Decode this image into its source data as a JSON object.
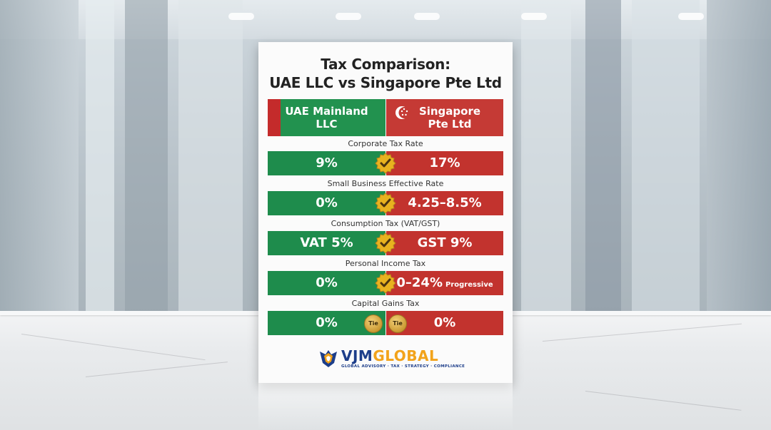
{
  "title": {
    "line1": "Tax Comparison:",
    "line2": "UAE LLC vs Singapore Pte Ltd"
  },
  "columns": {
    "uae": "UAE Mainland\nLLC",
    "uae_line1": "UAE Mainland",
    "uae_line2": "LLC",
    "sg_line1": "Singapore",
    "sg_line2": "Pte Ltd"
  },
  "rows": [
    {
      "label": "Corporate Tax Rate",
      "uae": "9%",
      "sg": "17%",
      "winner": "check"
    },
    {
      "label": "Small Business Effective Rate",
      "uae": "0%",
      "sg": "4.25–8.5%",
      "winner": "check"
    },
    {
      "label": "Consumption Tax (VAT/GST)",
      "uae": "VAT 5%",
      "sg": "GST 9%",
      "winner": "check"
    },
    {
      "label": "Personal Income Tax",
      "uae": "0%",
      "sg": "0–24%",
      "sg_note": "Progressive",
      "winner": "check"
    },
    {
      "label": "Capital Gains Tax",
      "uae": "0%",
      "sg": "0%",
      "winner": "tie",
      "tie_label": "Tie"
    }
  ],
  "logo": {
    "vjm": "VJM",
    "global": "GLOBAL",
    "tagline": "GLOBAL ADVISORY · TAX · STRATEGY · COMPLIANCE"
  },
  "colors": {
    "uae_green": "#1e8c4c",
    "sg_red": "#c2332e",
    "check_gold": "#e8b21f",
    "logo_blue": "#1d3e8a",
    "logo_orange": "#f2a31b"
  },
  "icons": [
    "gold-check-icon",
    "tie-coin-icon",
    "singapore-crescent-icon",
    "vjm-logo-icon"
  ]
}
